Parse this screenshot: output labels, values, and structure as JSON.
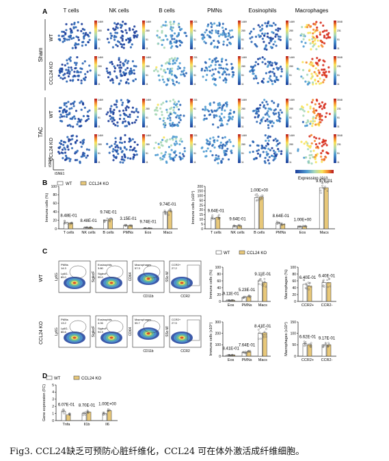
{
  "panelA": {
    "letter": "A",
    "col_headers": [
      "T cells",
      "NK cells",
      "B cells",
      "PMNs",
      "Eosinophils",
      "Macrophages"
    ],
    "group_labels": [
      "Sham",
      "TAC"
    ],
    "row_labels": [
      "WT",
      "CCL24 KO",
      "WT",
      "CCL24 KO"
    ],
    "axis_x": "tSNE1",
    "axis_y": "tSNE2",
    "expression_label": "Expression (AU)",
    "colorbar_ticks": [
      [
        "1469",
        "280",
        "51",
        "11"
      ],
      [
        "1469",
        "280",
        "51",
        "11"
      ],
      [
        "231",
        "91",
        "31",
        "11"
      ],
      [
        "1469",
        "280",
        "51",
        "11"
      ],
      [
        "1469",
        "280",
        "51",
        "11"
      ],
      [
        "3048",
        "231",
        "51",
        "11"
      ]
    ]
  },
  "panelB": {
    "letter": "B",
    "legend": [
      "WT",
      "CCL24 KO"
    ],
    "left_ylabel": "Immune cells (%)",
    "right_ylabel": "Immune cells (x10⁴)",
    "left_yticks": [
      "100",
      "80",
      "60",
      "40",
      "20",
      "0"
    ],
    "right_yticks": [
      "200",
      "150",
      "100",
      "50",
      "25",
      "20",
      "15",
      "10",
      "5",
      "0"
    ],
    "left_categories": [
      "T cells",
      "NK cells",
      "B cells",
      "PMNs",
      "Eos",
      "Macs"
    ],
    "left_pvalues": [
      "8.48E-01",
      "8.48E-01",
      "9.74E-01",
      "3.15E-01",
      "9.74E-01",
      "9.74E-01"
    ],
    "right_categories": [
      "T cells",
      "NK cells",
      "B cells",
      "PMNs",
      "Eos",
      "Macs"
    ],
    "right_pvalues": [
      "9.64E-01",
      "9.64E-01",
      "1.00E+00",
      "8.64E-01",
      "1.00E+00",
      "9.97E-01"
    ]
  },
  "panelC": {
    "letter": "C",
    "row_labels": [
      "WT",
      "CCL24 KO"
    ],
    "flow_wt": {
      "p1_gates": [
        "PMNs",
        "14.3",
        "Ly6G-",
        "85.0"
      ],
      "p2_gates": [
        "Eosinophils",
        "3.80",
        "SiglecF-",
        "95.0"
      ],
      "p3_gates": [
        "Macrophages",
        "57.3"
      ],
      "p4_gates": [
        "CCR2+",
        "27.2"
      ]
    },
    "flow_ko": {
      "p1_gates": [
        "PMNs",
        "13.2",
        "Ly6G-",
        "86.6"
      ],
      "p2_gates": [
        "Eosinophils",
        "4.06",
        "SiglecF-",
        "94.9"
      ],
      "p3_gates": [
        "Macrophages",
        "55.7"
      ],
      "p4_gates": [
        "CCR2+",
        "27.5"
      ]
    },
    "flow_axes": [
      "Ly6G",
      "SiglecF",
      "CD64",
      "SSc-W",
      "CD11b",
      "CCR2"
    ],
    "legend": [
      "WT",
      "CCL24 KO"
    ],
    "bar1_ylabel": "Immune cells (%)",
    "bar1_categories": [
      "Eos",
      "PMNs",
      "Macs"
    ],
    "bar1_pvalues": [
      "9.11E-01",
      "5.23E-01",
      "9.11E-01"
    ],
    "bar2_ylabel": "Macrophages (%)",
    "bar2_categories": [
      "CCR2+",
      "CCR2-"
    ],
    "bar2_pvalues": [
      "6.40E-01",
      "6.40E-01"
    ],
    "bar3_ylabel": "Immune cells (x10⁴)",
    "bar3_categories": [
      "Eos",
      "PMNs",
      "Macs"
    ],
    "bar3_pvalues": [
      "8.41E-01",
      "7.64E-01",
      "8.41E-01"
    ],
    "bar4_ylabel": "Macrophages (x10⁴)",
    "bar4_categories": [
      "CCR2+",
      "CCR2-"
    ],
    "bar4_pvalues": [
      "6.62E-01",
      "9.17E-01"
    ],
    "pct_ticks": [
      "100",
      "80",
      "60",
      "40",
      "20",
      "0"
    ],
    "abs_ticks": [
      "300",
      "200",
      "100",
      "0"
    ],
    "mac_abs_ticks": [
      "150",
      "100",
      "50",
      "0"
    ]
  },
  "panelD": {
    "letter": "D",
    "legend": [
      "WT",
      "CCL24 KO"
    ],
    "ylabel": "Gene expression (FC)",
    "yticks": [
      "5",
      "4",
      "3",
      "2",
      "1",
      "0"
    ],
    "categories": [
      "Tnfa",
      "Il1b",
      "Il6"
    ],
    "pvalues": [
      "6.07E-01",
      "8.70E-01",
      "1.00E+00"
    ]
  },
  "caption": "Fig3. CCL24缺乏可预防心脏纤维化，CCL24 可在体外激活成纤维细胞。",
  "colors": {
    "wt": "#ffffff",
    "ko": "#e8c87a",
    "heat_low": "#1b3d9a",
    "heat_high": "#d7301f"
  },
  "chart_data": [
    {
      "type": "bar",
      "title": "",
      "ylabel": "Immune cells (%)",
      "categories": [
        "T cells",
        "NK cells",
        "B cells",
        "PMNs",
        "Eos",
        "Macs"
      ],
      "series": [
        {
          "name": "WT",
          "values": [
            15,
            3,
            20,
            8,
            1,
            40
          ]
        },
        {
          "name": "CCL24 KO",
          "values": [
            14,
            3,
            23,
            8,
            1,
            42
          ]
        }
      ],
      "ylim": [
        0,
        100
      ]
    },
    {
      "type": "bar",
      "title": "",
      "ylabel": "Immune cells (x10⁴)",
      "categories": [
        "T cells",
        "NK cells",
        "B cells",
        "PMNs",
        "Eos",
        "Macs"
      ],
      "series": [
        {
          "name": "WT",
          "values": [
            14,
            4,
            120,
            8,
            3,
            190
          ]
        },
        {
          "name": "CCL24 KO",
          "values": [
            15,
            4,
            125,
            6,
            3,
            190
          ]
        }
      ]
    },
    {
      "type": "bar",
      "title": "",
      "ylabel": "Immune cells (%)",
      "categories": [
        "Eos",
        "PMNs",
        "Macs"
      ],
      "series": [
        {
          "name": "WT",
          "values": [
            3,
            12,
            60
          ]
        },
        {
          "name": "CCL24 KO",
          "values": [
            3,
            14,
            55
          ]
        }
      ],
      "ylim": [
        0,
        100
      ]
    },
    {
      "type": "bar",
      "title": "",
      "ylabel": "Macrophages (%)",
      "categories": [
        "CCR2+",
        "CCR2-"
      ],
      "series": [
        {
          "name": "WT",
          "values": [
            50,
            55
          ]
        },
        {
          "name": "CCL24 KO",
          "values": [
            45,
            55
          ]
        }
      ],
      "ylim": [
        0,
        100
      ]
    },
    {
      "type": "bar",
      "title": "",
      "ylabel": "Immune cells (x10⁴)",
      "categories": [
        "Eos",
        "PMNs",
        "Macs"
      ],
      "series": [
        {
          "name": "WT",
          "values": [
            10,
            35,
            200
          ]
        },
        {
          "name": "CCL24 KO",
          "values": [
            10,
            40,
            205
          ]
        }
      ],
      "ylim": [
        0,
        300
      ]
    },
    {
      "type": "bar",
      "title": "",
      "ylabel": "Macrophages (x10⁴)",
      "categories": [
        "CCR2+",
        "CCR2-"
      ],
      "series": [
        {
          "name": "WT",
          "values": [
            55,
            50
          ]
        },
        {
          "name": "CCL24 KO",
          "values": [
            50,
            50
          ]
        }
      ],
      "ylim": [
        0,
        150
      ]
    },
    {
      "type": "bar",
      "title": "",
      "ylabel": "Gene expression (FC)",
      "categories": [
        "Tnfa",
        "Il1b",
        "Il6"
      ],
      "series": [
        {
          "name": "WT",
          "values": [
            1.3,
            1.0,
            1.0
          ]
        },
        {
          "name": "CCL24 KO",
          "values": [
            0.8,
            1.2,
            1.4
          ]
        }
      ],
      "ylim": [
        0,
        5
      ]
    }
  ]
}
